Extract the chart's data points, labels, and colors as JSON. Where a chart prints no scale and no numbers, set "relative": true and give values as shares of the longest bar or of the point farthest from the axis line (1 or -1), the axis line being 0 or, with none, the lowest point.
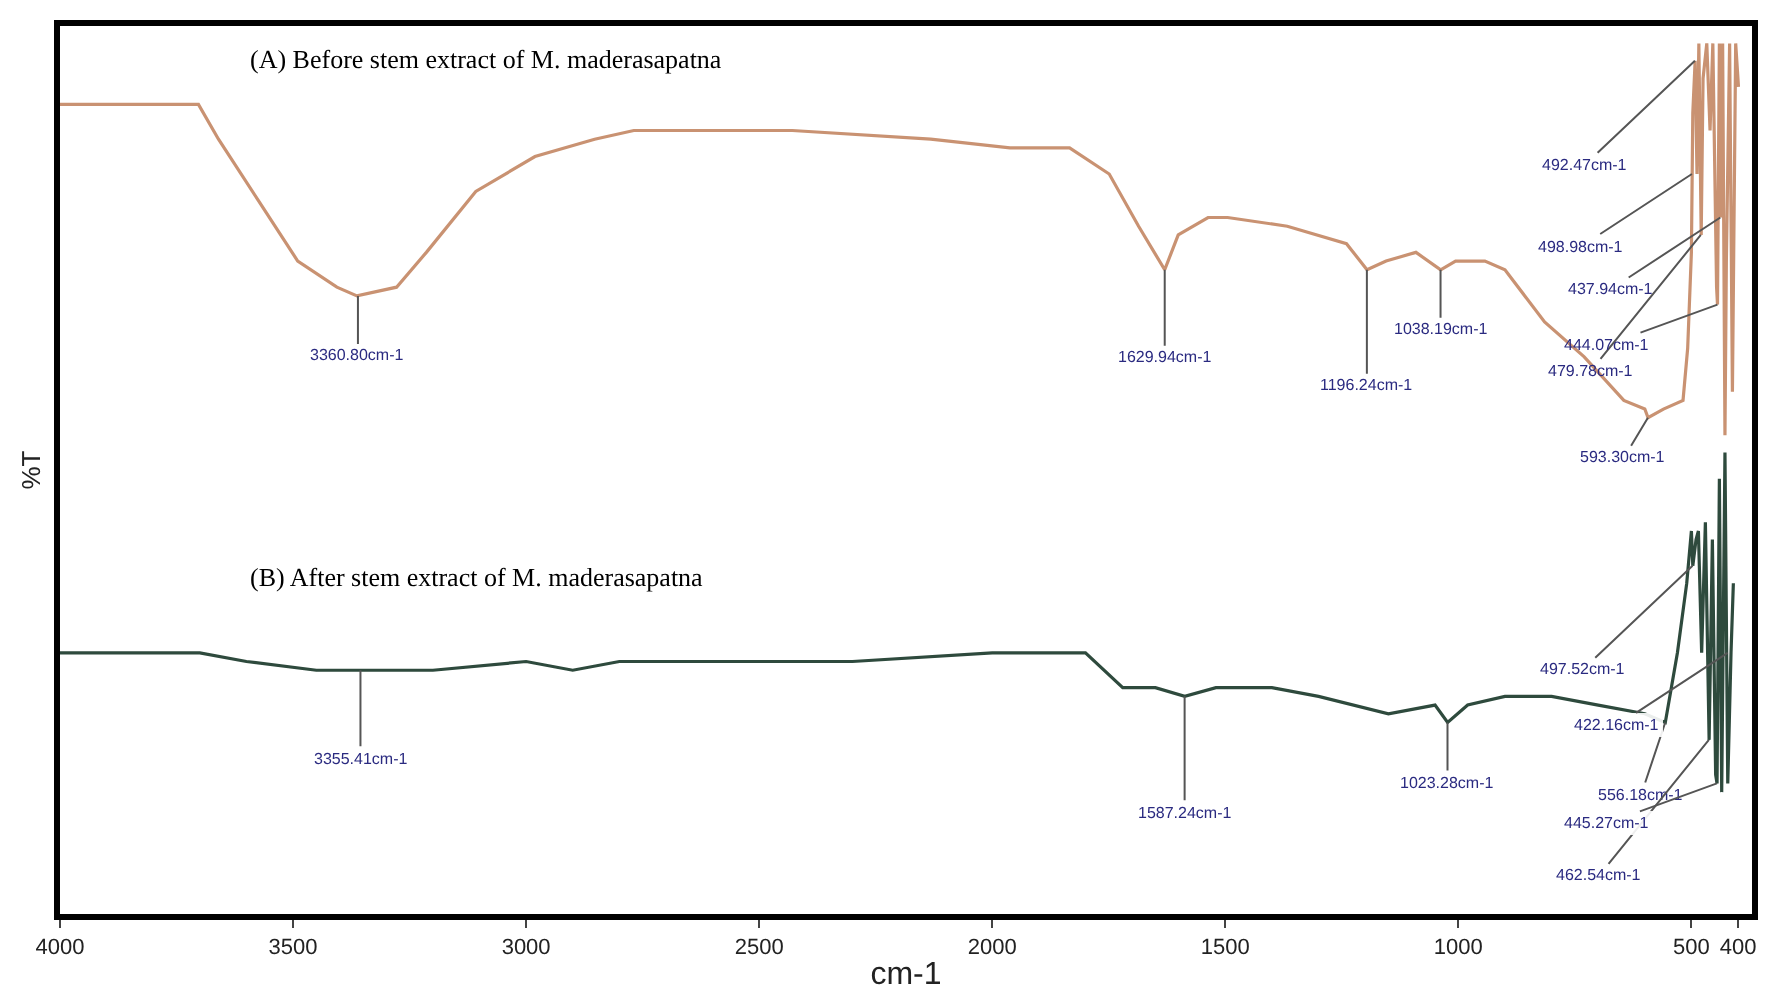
{
  "chart_data": {
    "type": "line",
    "relative": true,
    "xlabel": "cm-1",
    "ylabel": "%T",
    "x": [
      4000,
      3745,
      3703,
      3660,
      3575,
      3490,
      3406,
      3363,
      3278,
      3214,
      3108,
      2981,
      2853,
      2769,
      2429,
      2132,
      1962,
      1834,
      1749,
      1686,
      1630,
      1601,
      1537,
      1495,
      1367,
      1240,
      1196,
      1155,
      1091,
      1038,
      1006,
      943,
      900,
      815,
      730,
      645,
      600,
      593,
      560,
      518,
      508,
      500,
      497,
      492,
      488,
      484,
      479,
      475,
      467,
      460,
      454,
      446,
      444,
      440,
      437,
      433,
      428,
      425,
      418,
      412,
      405,
      399
    ],
    "xlim": [
      4000,
      370
    ],
    "xticks": [
      4000,
      3500,
      3000,
      2500,
      2000,
      1500,
      1000,
      500,
      400
    ],
    "line_style": "solid",
    "marker": "none",
    "series": [
      {
        "color": "#c99272",
        "values": [
          0.93,
          0.93,
          0.93,
          0.89,
          0.82,
          0.75,
          0.72,
          0.71,
          0.72,
          0.76,
          0.83,
          0.87,
          0.89,
          0.9,
          0.9,
          0.89,
          0.88,
          0.88,
          0.85,
          0.79,
          0.74,
          0.78,
          0.8,
          0.8,
          0.79,
          0.77,
          0.74,
          0.75,
          0.76,
          0.74,
          0.75,
          0.75,
          0.74,
          0.68,
          0.64,
          0.59,
          0.58,
          0.57,
          0.58,
          0.59,
          0.65,
          0.76,
          0.92,
          0.98,
          0.85,
          1.0,
          0.78,
          0.96,
          1.0,
          0.9,
          1.0,
          0.72,
          0.7,
          1.0,
          0.8,
          1.0,
          0.55,
          0.75,
          1.0,
          0.6,
          1.0,
          0.95
        ]
      },
      {
        "color": "#2e4a3d",
        "x": [
          4000,
          3700,
          3600,
          3450,
          3355,
          3200,
          3000,
          2900,
          2800,
          2300,
          2000,
          1850,
          1800,
          1720,
          1650,
          1587,
          1520,
          1400,
          1300,
          1150,
          1050,
          1023,
          980,
          900,
          800,
          700,
          600,
          556,
          530,
          510,
          500,
          497,
          490,
          485,
          478,
          470,
          462,
          455,
          448,
          445,
          440,
          435,
          428,
          422,
          415,
          410
        ],
        "values": [
          0.3,
          0.3,
          0.29,
          0.28,
          0.28,
          0.28,
          0.29,
          0.28,
          0.29,
          0.29,
          0.3,
          0.3,
          0.3,
          0.26,
          0.26,
          0.25,
          0.26,
          0.26,
          0.25,
          0.23,
          0.24,
          0.22,
          0.24,
          0.25,
          0.25,
          0.24,
          0.23,
          0.22,
          0.3,
          0.38,
          0.44,
          0.4,
          0.43,
          0.44,
          0.3,
          0.45,
          0.2,
          0.43,
          0.16,
          0.15,
          0.5,
          0.14,
          0.53,
          0.15,
          0.3,
          0.38
        ]
      }
    ],
    "annotations": [
      "(A) Before stem extract of M. maderasapatna",
      "(B) After stem extract of M. maderasapatna",
      {
        "text": "3360.80cm-1",
        "x": 3360.8,
        "y": 0.71
      },
      {
        "text": "1629.94cm-1",
        "x": 1629.94,
        "y": 0.74
      },
      {
        "text": "1196.24cm-1",
        "x": 1196.24,
        "y": 0.74
      },
      {
        "text": "1038.19cm-1",
        "x": 1038.19,
        "y": 0.74
      },
      {
        "text": "593.30cm-1",
        "x": 593.3,
        "y": 0.57
      },
      {
        "text": "498.98cm-1",
        "x": 498.98,
        "y": 0.85
      },
      {
        "text": "492.47cm-1",
        "x": 492.47,
        "y": 0.98
      },
      {
        "text": "479.78cm-1",
        "x": 479.78,
        "y": 0.78
      },
      {
        "text": "444.07cm-1",
        "x": 444.07,
        "y": 0.7
      },
      {
        "text": "437.94cm-1",
        "x": 437.94,
        "y": 0.8
      },
      {
        "text": "3355.41cm-1",
        "x": 3355.41,
        "y": 0.28
      },
      {
        "text": "1587.24cm-1",
        "x": 1587.24,
        "y": 0.25
      },
      {
        "text": "1023.28cm-1",
        "x": 1023.28,
        "y": 0.22
      },
      {
        "text": "556.18cm-1",
        "x": 556.18,
        "y": 0.22
      },
      {
        "text": "497.52cm-1",
        "x": 497.52,
        "y": 0.4
      },
      {
        "text": "462.54cm-1",
        "x": 462.54,
        "y": 0.2
      },
      {
        "text": "445.27cm-1",
        "x": 445.27,
        "y": 0.15
      },
      {
        "text": "422.16cm-1",
        "x": 422.16,
        "y": 0.3
      }
    ]
  }
}
